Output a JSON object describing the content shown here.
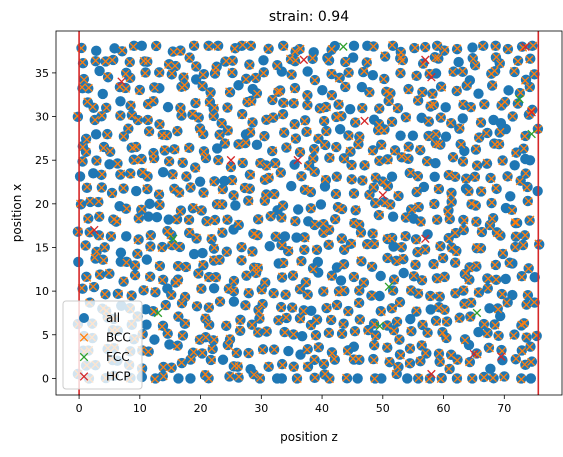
{
  "chart_data": {
    "type": "scatter",
    "title": "strain: 0.94",
    "xlabel": "position z",
    "ylabel": "position x",
    "xlim": [
      -3.8,
      79.5
    ],
    "ylim": [
      -1.9,
      39.8
    ],
    "x_ticks": [
      0,
      10,
      20,
      30,
      40,
      50,
      60,
      70
    ],
    "y_ticks": [
      0,
      5,
      10,
      15,
      20,
      25,
      30,
      35
    ],
    "grid": false,
    "legend_position": "lower-left",
    "vlines": [
      0,
      75.6
    ],
    "vline_color": "#d62728",
    "series": [
      {
        "name": "all",
        "marker": "circle",
        "color": "#1f77b4"
      },
      {
        "name": "BCC",
        "marker": "x",
        "color": "#ff7f0e"
      },
      {
        "name": "FCC",
        "marker": "x",
        "color": "#2ca02c"
      },
      {
        "name": "HCP",
        "marker": "x",
        "color": "#d62728"
      }
    ],
    "fcc_points": [
      [
        43.5,
        38
      ],
      [
        72.5,
        32
      ],
      [
        74.5,
        28
      ],
      [
        15.5,
        16
      ],
      [
        51,
        10.5
      ],
      [
        49.5,
        6
      ],
      [
        13,
        7.5
      ],
      [
        65.5,
        7.5
      ]
    ],
    "hcp_points": [
      [
        37,
        36.5
      ],
      [
        57,
        36.5
      ],
      [
        7,
        34
      ],
      [
        58,
        34.5
      ],
      [
        47,
        29.5
      ],
      [
        25,
        25
      ],
      [
        36,
        25
      ],
      [
        50,
        21
      ],
      [
        74.5,
        30.5
      ],
      [
        2.5,
        17
      ],
      [
        57,
        16
      ],
      [
        65,
        2.8
      ],
      [
        69.5,
        2.5
      ],
      [
        58,
        0.5
      ],
      [
        73.5,
        38
      ]
    ],
    "generation": {
      "nx": 38,
      "ny": 24,
      "x_step": 2.0,
      "y_step": 1.65,
      "jitter_x": 0.9,
      "jitter_y": 0.6,
      "seed": 7
    }
  }
}
